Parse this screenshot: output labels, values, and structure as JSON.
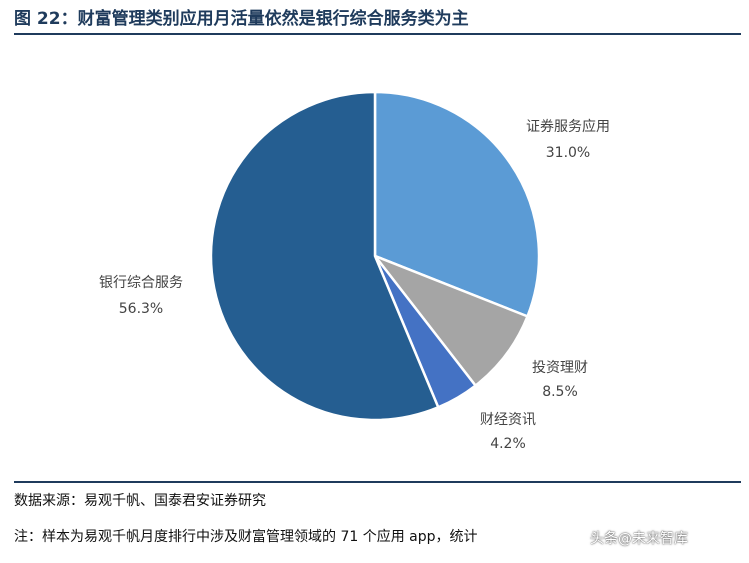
{
  "title": "图 22：财富管理类别应用月活量依然是银行综合服务类为主",
  "source": "数据来源：易观千帆、国泰君安证券研究",
  "note": "注：样本为易观千帆月度排行中涉及财富管理领域的 71 个应用 app，统计",
  "watermark": "头条@未来智库",
  "chart_data": {
    "type": "pie",
    "title": "财富管理类别应用月活量依然是银行综合服务类为主",
    "slices": [
      {
        "label": "证券服务应用",
        "value": 31.0,
        "value_label": "31.0%",
        "color": "#5b9bd5"
      },
      {
        "label": "投资理财",
        "value": 8.5,
        "value_label": "8.5%",
        "color": "#a5a5a5"
      },
      {
        "label": "财经资讯",
        "value": 4.2,
        "value_label": "4.2%",
        "color": "#4472c4"
      },
      {
        "label": "银行综合服务",
        "value": 56.3,
        "value_label": "56.3%",
        "color": "#255e91"
      }
    ],
    "start_angle_deg": 0,
    "direction": "clockwise"
  }
}
